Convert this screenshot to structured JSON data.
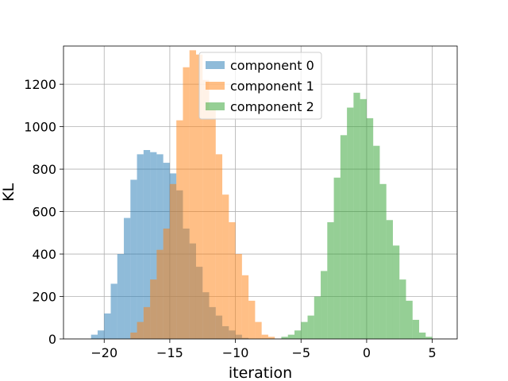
{
  "chart_data": {
    "type": "bar",
    "subtype": "overlapping-histogram",
    "title": "",
    "xlabel": "iteration",
    "ylabel": "KL",
    "xlim": [
      -23.1,
      6.9
    ],
    "ylim": [
      0,
      1380
    ],
    "xticks": [
      -20,
      -15,
      -10,
      -5,
      0,
      5
    ],
    "yticks": [
      0,
      200,
      400,
      600,
      800,
      1000,
      1200
    ],
    "grid": true,
    "legend_position": "top-center",
    "bin_width": 0.5,
    "alpha": 0.5,
    "series": [
      {
        "name": "component 0",
        "color": "#1f77b4",
        "bin_start": -21.0,
        "values": [
          20,
          40,
          120,
          260,
          400,
          570,
          750,
          870,
          890,
          880,
          870,
          830,
          780,
          700,
          520,
          450,
          340,
          220,
          150,
          110,
          60,
          40,
          20,
          5
        ]
      },
      {
        "name": "component 1",
        "color": "#ff7f0e",
        "bin_start": -18.0,
        "values": [
          30,
          80,
          150,
          280,
          420,
          520,
          730,
          1030,
          1280,
          1360,
          1340,
          1220,
          1080,
          870,
          680,
          550,
          400,
          300,
          180,
          80,
          20,
          10
        ]
      },
      {
        "name": "component 2",
        "color": "#2ca02c",
        "bin_start": -6.5,
        "values": [
          10,
          20,
          40,
          80,
          110,
          200,
          320,
          550,
          760,
          960,
          1090,
          1160,
          1130,
          1040,
          910,
          730,
          560,
          440,
          280,
          180,
          90,
          30,
          10
        ]
      }
    ]
  }
}
